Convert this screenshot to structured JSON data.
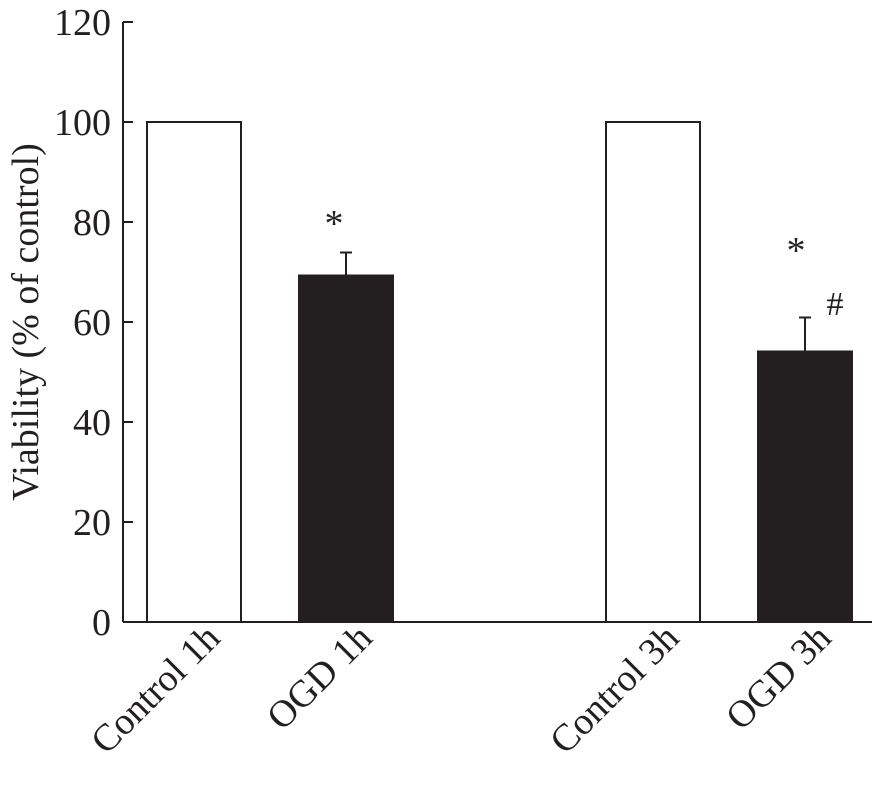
{
  "chart_data": {
    "type": "bar",
    "title": "",
    "xlabel": "",
    "ylabel": "Viability (% of control)",
    "ylim": [
      0,
      120
    ],
    "yticks": [
      0,
      20,
      40,
      60,
      80,
      100,
      120
    ],
    "grid": false,
    "categories": [
      "Control 1h",
      "OGD 1h",
      "Control 3h",
      "OGD 3h"
    ],
    "values": [
      100,
      69.3,
      100,
      54.1
    ],
    "error_upper": [
      0,
      4.6,
      0,
      6.8
    ],
    "bar_colors": [
      "#ffffff",
      "#231f20",
      "#ffffff",
      "#231f20"
    ],
    "annotations": [
      {
        "category": "OGD 1h",
        "text": "*"
      },
      {
        "category": "OGD 3h",
        "text": "*"
      },
      {
        "category": "OGD 3h",
        "text": "#"
      }
    ]
  }
}
